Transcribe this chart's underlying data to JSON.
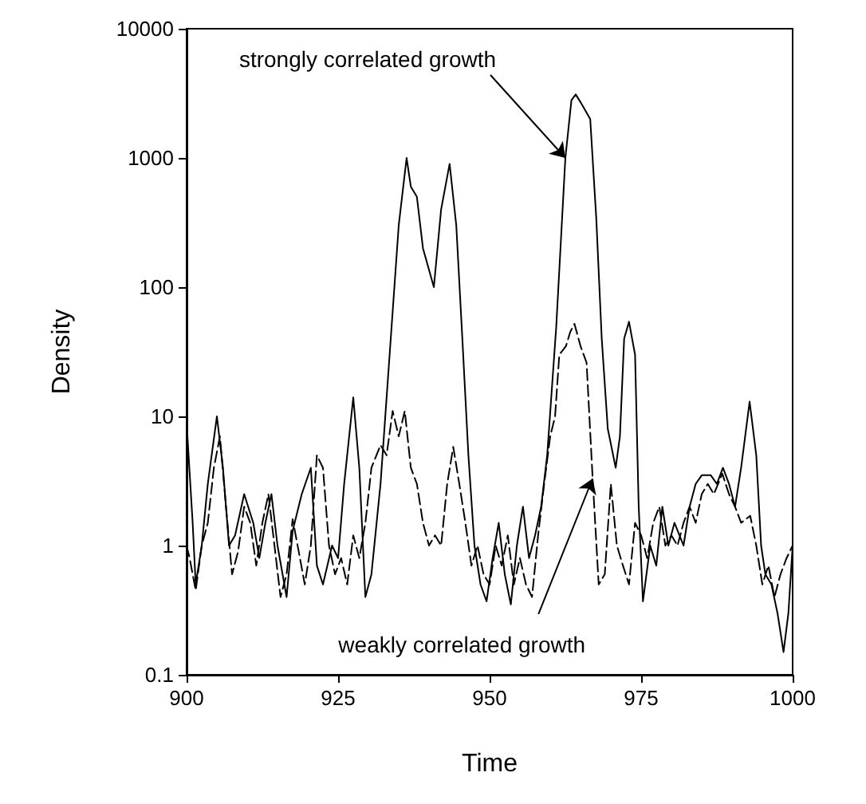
{
  "chart_data": {
    "type": "line",
    "xlabel": "Time",
    "ylabel": "Density",
    "log": "y",
    "grid": false,
    "legend": false,
    "marker": "none",
    "xlim": [
      900,
      1000
    ],
    "xticks": [
      900,
      925,
      950,
      975,
      1000
    ],
    "ylim": [
      0.1,
      10000
    ],
    "yticks": [
      0.1,
      1,
      10,
      100,
      1000,
      10000
    ],
    "annotations": [
      {
        "text": "strongly correlated growth",
        "x": 962.5,
        "y": 1000
      },
      {
        "text": "weakly correlated growth",
        "x": 967,
        "y": 3.3
      }
    ],
    "series": [
      {
        "color": "#000000",
        "line_style": "solid",
        "x": [
          900,
          901,
          901.5,
          902.5,
          903.5,
          905,
          906,
          907,
          908,
          909.5,
          911,
          912,
          913,
          914,
          915,
          916.5,
          917.5,
          919,
          920.5,
          921.5,
          922.5,
          924,
          925,
          926,
          927.5,
          928.5,
          929.5,
          930.5,
          932,
          933.5,
          935,
          936.3,
          937,
          938,
          939,
          940.8,
          942,
          943.4,
          944.5,
          945.5,
          946.5,
          947.5,
          948.5,
          949.5,
          950.5,
          951.5,
          952.5,
          953.5,
          954.5,
          955.5,
          956.5,
          957.5,
          958.5,
          959.5,
          961,
          962.5,
          963.5,
          964.2,
          965,
          966.6,
          967.6,
          968.5,
          969.5,
          970.8,
          971.5,
          972.2,
          973,
          974,
          974.6,
          975.3,
          976.5,
          977.5,
          978.5,
          979.5,
          980.5,
          982,
          983,
          984,
          985,
          986.5,
          987.5,
          988.5,
          989.5,
          990.5,
          991.5,
          992.9,
          994,
          994.8,
          995.5,
          996.5,
          997.5,
          998.5,
          999.3,
          1000
        ],
        "values": [
          9,
          1.5,
          0.5,
          1,
          3,
          10,
          4,
          1,
          1.2,
          2.5,
          1.5,
          0.8,
          1.5,
          2.5,
          1,
          0.4,
          1.3,
          2.5,
          4,
          0.7,
          0.5,
          1,
          0.8,
          3,
          14,
          4,
          0.4,
          0.6,
          3,
          30,
          300,
          1000,
          600,
          500,
          200,
          100,
          400,
          900,
          300,
          40,
          5,
          1,
          0.5,
          0.37,
          0.8,
          1.5,
          0.6,
          0.35,
          1,
          2,
          0.8,
          1.2,
          2,
          5,
          50,
          1000,
          2800,
          3100,
          2700,
          2000,
          340,
          40,
          8,
          4,
          7,
          40,
          54,
          30,
          2,
          0.37,
          1,
          0.7,
          2,
          1,
          1.5,
          1,
          2,
          3,
          3.5,
          3.5,
          3,
          4,
          3,
          2,
          4,
          13,
          5,
          1,
          0.6,
          0.5,
          0.3,
          0.15,
          0.3,
          1
        ]
      },
      {
        "color": "#000000",
        "line_style": "dashed",
        "x": [
          900,
          900.5,
          901.5,
          902.5,
          903.5,
          904.5,
          905.5,
          906.5,
          907.5,
          908.5,
          909.5,
          910.5,
          911.5,
          912.5,
          913.5,
          914.5,
          915.5,
          916.5,
          917.5,
          918.5,
          919.5,
          920.5,
          921.5,
          922.5,
          923.5,
          924.5,
          925.5,
          926.5,
          927.5,
          928.5,
          929.5,
          930.5,
          932,
          933,
          934,
          935,
          936,
          937,
          938,
          939,
          940,
          941,
          942,
          943,
          944,
          945,
          946,
          947,
          948,
          949,
          950,
          951,
          952,
          953,
          954,
          955,
          956,
          957,
          958,
          959,
          960,
          960.8,
          961.5,
          962.6,
          963.3,
          964,
          965,
          966,
          967,
          968,
          969,
          970,
          971,
          972,
          973,
          974,
          975,
          976,
          977,
          978,
          979,
          980,
          981,
          982,
          983,
          984,
          985,
          986,
          987,
          988.4,
          989.5,
          990.5,
          991.5,
          993,
          994,
          995,
          996,
          997,
          998,
          999,
          1000
        ],
        "values": [
          1,
          0.8,
          0.45,
          1,
          1.5,
          4,
          7,
          2,
          0.6,
          0.9,
          2,
          1.5,
          0.7,
          1.5,
          2.5,
          1,
          0.4,
          0.6,
          1.6,
          0.9,
          0.5,
          1,
          5,
          4,
          1,
          0.6,
          0.8,
          0.5,
          1.2,
          0.8,
          1.5,
          4,
          6,
          5,
          11,
          7,
          11,
          4,
          3,
          1.5,
          1,
          1.2,
          1,
          3,
          5.8,
          3,
          1.5,
          0.7,
          1,
          0.6,
          0.5,
          1,
          0.7,
          1.2,
          0.5,
          0.8,
          0.5,
          0.4,
          1.2,
          3,
          7,
          10,
          30,
          35,
          45,
          52,
          35,
          26,
          3.3,
          0.5,
          0.6,
          3,
          1,
          0.7,
          0.5,
          1.5,
          1.2,
          0.8,
          1.5,
          2,
          1,
          1.2,
          1,
          1.5,
          2,
          1.5,
          2.5,
          3,
          2.5,
          3.6,
          2.5,
          2,
          1.5,
          1.7,
          1,
          0.5,
          0.7,
          0.4,
          0.6,
          0.8,
          1
        ]
      }
    ]
  }
}
